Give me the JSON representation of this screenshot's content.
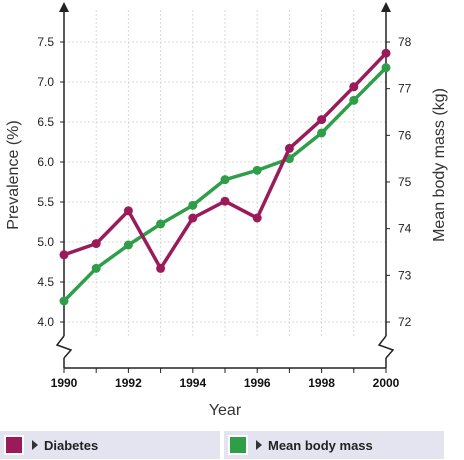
{
  "chart_data": {
    "type": "line",
    "x": [
      1990,
      1991,
      1992,
      1993,
      1994,
      1995,
      1996,
      1997,
      1998,
      1999,
      2000
    ],
    "xlabel": "Year",
    "xlim": [
      1990,
      2000
    ],
    "xticks": [
      "1990",
      "1992",
      "1994",
      "1996",
      "1998",
      "2000"
    ],
    "ylabel_left": "Prevalence (%)",
    "ylim_left": [
      4.0,
      7.5
    ],
    "yticks_left": [
      "4.0",
      "4.5",
      "5.0",
      "5.5",
      "6.0",
      "6.5",
      "7.0",
      "7.5"
    ],
    "ylabel_right": "Mean body mass (kg)",
    "ylim_right": [
      72,
      78
    ],
    "yticks_right": [
      "72",
      "73",
      "74",
      "75",
      "76",
      "77",
      "78"
    ],
    "grid": true,
    "series": [
      {
        "name": "Diabetes",
        "axis": "left",
        "color": "#9b1b5a",
        "values": [
          4.84,
          4.98,
          5.39,
          4.67,
          5.3,
          5.51,
          5.3,
          6.17,
          6.53,
          6.94,
          7.36
        ]
      },
      {
        "name": "Mean body mass",
        "axis": "right",
        "color": "#2e9e48",
        "values": [
          72.45,
          73.15,
          73.65,
          74.1,
          74.5,
          75.05,
          75.25,
          75.5,
          76.05,
          76.75,
          77.45
        ]
      }
    ]
  },
  "legend": {
    "items": [
      {
        "label": "Diabetes",
        "color": "#9b1b5a"
      },
      {
        "label": "Mean body mass",
        "color": "#2e9e48"
      }
    ]
  }
}
